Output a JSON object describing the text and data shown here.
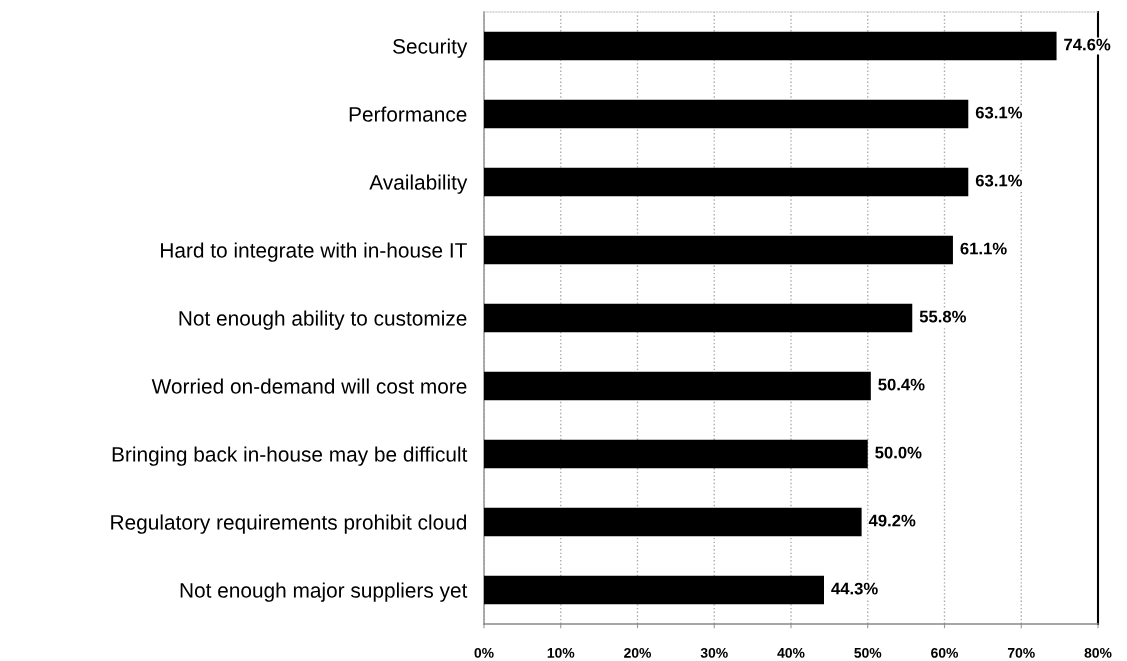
{
  "chart_data": {
    "type": "bar",
    "orientation": "horizontal",
    "categories": [
      "Security",
      "Performance",
      "Availability",
      "Hard to integrate with in-house IT",
      "Not enough ability to customize",
      "Worried on-demand will cost more",
      "Bringing back in-house may be difficult",
      "Regulatory requirements prohibit cloud",
      "Not enough major suppliers yet"
    ],
    "values": [
      74.6,
      63.1,
      63.1,
      61.1,
      55.8,
      50.4,
      50.0,
      49.2,
      44.3
    ],
    "color": "#000000",
    "value_labels": [
      "74.6%",
      "63.1%",
      "63.1%",
      "61.1%",
      "55.8%",
      "50.4%",
      "50.0%",
      "49.2%",
      "44.3%"
    ],
    "xlim": [
      0,
      80
    ],
    "xticks": [
      {
        "value": 0,
        "label": "0%"
      },
      {
        "value": 10,
        "label": "10%"
      },
      {
        "value": 20,
        "label": "20%"
      },
      {
        "value": 30,
        "label": "30%"
      },
      {
        "value": 40,
        "label": "40%"
      },
      {
        "value": 50,
        "label": "50%"
      },
      {
        "value": 60,
        "label": "60%"
      },
      {
        "value": 70,
        "label": "70%"
      },
      {
        "value": 80,
        "label": "80%"
      }
    ],
    "grid": "x"
  }
}
